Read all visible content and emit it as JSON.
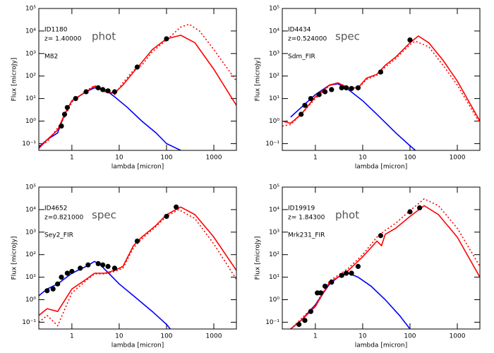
{
  "chart_data": [
    {
      "type": "line",
      "annotations": [
        "ID1180",
        "z= 1.40000",
        "phot",
        "M82"
      ],
      "xlabel": "lambda [micron]",
      "ylabel": "Flux [microJy]",
      "log_x": true,
      "log_y": true,
      "xlim": [
        0.2,
        3000
      ],
      "ylim": [
        0.05,
        100000
      ],
      "xticks": [
        1,
        10,
        100,
        1000
      ],
      "yticks": [
        {
          "value": 0.1,
          "label": "10⁻¹"
        },
        {
          "value": 1,
          "label": "10⁰"
        },
        {
          "value": 10,
          "label": "10¹"
        },
        {
          "value": 100,
          "label": "10²"
        },
        {
          "value": 1000,
          "label": "10³"
        },
        {
          "value": 10000,
          "label": "10⁴"
        },
        {
          "value": 100000,
          "label": "10⁵"
        }
      ],
      "series": [
        {
          "color": "#0000ff",
          "style": "solid",
          "x": [
            0.2,
            0.3,
            0.5,
            0.7,
            1,
            2,
            3,
            5,
            8,
            15,
            30,
            60,
            100,
            200
          ],
          "values": [
            0.07,
            0.15,
            0.3,
            2,
            8,
            20,
            30,
            25,
            12,
            4,
            1,
            0.3,
            0.1,
            0.05
          ]
        },
        {
          "color": "#ff0000",
          "style": "solid",
          "x": [
            0.2,
            0.3,
            0.5,
            0.7,
            1,
            2,
            3,
            5,
            8,
            12,
            20,
            30,
            50,
            100,
            200,
            400,
            1000,
            3000
          ],
          "values": [
            0.06,
            0.15,
            0.4,
            2,
            8,
            20,
            35,
            20,
            18,
            40,
            150,
            400,
            1500,
            4500,
            6500,
            3000,
            200,
            5
          ]
        },
        {
          "color": "#ff0000",
          "style": "dotted",
          "x": [
            0.2,
            0.3,
            0.5,
            0.7,
            1,
            2,
            3,
            5,
            8,
            12,
            20,
            30,
            50,
            100,
            200,
            300,
            500,
            1000,
            3000
          ],
          "values": [
            0.08,
            0.12,
            0.5,
            1.5,
            7,
            22,
            38,
            22,
            15,
            50,
            180,
            300,
            1200,
            4000,
            15000,
            20000,
            10000,
            1500,
            60
          ]
        }
      ],
      "points": {
        "color": "#000000",
        "x": [
          0.6,
          0.7,
          0.8,
          1.2,
          2,
          3.6,
          4.5,
          5.8,
          8,
          24,
          100
        ],
        "values": [
          0.6,
          2,
          4,
          10,
          20,
          30,
          25,
          22,
          20,
          250,
          4500
        ]
      }
    },
    {
      "type": "line",
      "annotations": [
        "ID4434",
        "z=0.524000",
        "spec",
        "Sdm_FIR"
      ],
      "xlabel": "lambda [micron]",
      "ylabel": "Flux [microJy]",
      "log_x": true,
      "log_y": true,
      "xlim": [
        0.2,
        3000
      ],
      "ylim": [
        0.05,
        100000
      ],
      "xticks": [
        1,
        10,
        100,
        1000
      ],
      "yticks": [
        {
          "value": 0.1,
          "label": "10⁻¹"
        },
        {
          "value": 1,
          "label": "10⁰"
        },
        {
          "value": 10,
          "label": "10¹"
        },
        {
          "value": 100,
          "label": "10²"
        },
        {
          "value": 1000,
          "label": "10³"
        },
        {
          "value": 10000,
          "label": "10⁴"
        },
        {
          "value": 100000,
          "label": "10⁵"
        }
      ],
      "series": [
        {
          "color": "#0000ff",
          "style": "solid",
          "x": [
            0.3,
            0.5,
            1,
            2,
            3,
            5,
            10,
            20,
            50,
            100,
            130
          ],
          "values": [
            1.5,
            4,
            15,
            40,
            45,
            25,
            8,
            2,
            0.3,
            0.08,
            0.05
          ]
        },
        {
          "color": "#ff0000",
          "style": "solid",
          "x": [
            0.2,
            0.3,
            0.5,
            1,
            2,
            3,
            5,
            8,
            12,
            20,
            30,
            50,
            100,
            150,
            250,
            500,
            1000,
            3000
          ],
          "values": [
            1,
            0.8,
            2,
            12,
            40,
            50,
            30,
            30,
            80,
            120,
            300,
            700,
            3000,
            6000,
            3000,
            500,
            60,
            1
          ]
        },
        {
          "color": "#ff0000",
          "style": "dotted",
          "x": [
            0.2,
            0.3,
            0.5,
            1,
            2,
            3,
            5,
            8,
            12,
            20,
            30,
            50,
            100,
            130,
            250,
            500,
            1000,
            3000
          ],
          "values": [
            0.6,
            0.7,
            2,
            10,
            38,
            48,
            30,
            28,
            70,
            110,
            250,
            600,
            2500,
            3500,
            2000,
            300,
            40,
            0.8
          ]
        }
      ],
      "points": {
        "color": "#000000",
        "x": [
          0.5,
          0.6,
          0.8,
          1.2,
          1.6,
          2.2,
          3.6,
          4.5,
          5.8,
          8,
          24,
          100
        ],
        "values": [
          2,
          5,
          10,
          15,
          20,
          25,
          30,
          30,
          28,
          30,
          150,
          4000
        ]
      }
    },
    {
      "type": "line",
      "annotations": [
        "ID4652",
        "z=0.821000",
        "spec",
        "Sey2_FIR"
      ],
      "xlabel": "lambda [micron]",
      "ylabel": "Flux [microJy]",
      "log_x": true,
      "log_y": true,
      "xlim": [
        0.2,
        3000
      ],
      "ylim": [
        0.05,
        100000
      ],
      "xticks": [
        1,
        10,
        100,
        1000
      ],
      "yticks": [
        {
          "value": 0.1,
          "label": "10⁻¹"
        },
        {
          "value": 1,
          "label": "10⁰"
        },
        {
          "value": 10,
          "label": "10¹"
        },
        {
          "value": 100,
          "label": "10²"
        },
        {
          "value": 1000,
          "label": "10³"
        },
        {
          "value": 10000,
          "label": "10⁴"
        },
        {
          "value": 100000,
          "label": "10⁵"
        }
      ],
      "series": [
        {
          "color": "#0000ff",
          "style": "solid",
          "x": [
            0.2,
            0.3,
            0.5,
            1,
            2,
            3,
            4,
            6,
            10,
            20,
            50,
            100,
            120
          ],
          "values": [
            1.5,
            3,
            5,
            15,
            30,
            50,
            35,
            15,
            5,
            1.5,
            0.3,
            0.08,
            0.05
          ]
        },
        {
          "color": "#ff0000",
          "style": "solid",
          "x": [
            0.2,
            0.3,
            0.5,
            1,
            2,
            3,
            5,
            8,
            12,
            20,
            30,
            60,
            100,
            200,
            400,
            1000,
            3000
          ],
          "values": [
            0.2,
            0.4,
            0.3,
            3,
            8,
            15,
            15,
            20,
            30,
            250,
            600,
            2000,
            6000,
            13000,
            6000,
            600,
            20
          ]
        },
        {
          "color": "#ff0000",
          "style": "dotted",
          "x": [
            0.2,
            0.3,
            0.5,
            1,
            2,
            3,
            5,
            8,
            12,
            20,
            30,
            60,
            100,
            180,
            400,
            1000,
            3000
          ],
          "values": [
            0.1,
            0.2,
            0.07,
            2,
            7,
            14,
            14,
            18,
            25,
            200,
            500,
            1800,
            5000,
            10000,
            4000,
            300,
            8
          ]
        }
      ],
      "points": {
        "color": "#000000",
        "x": [
          0.3,
          0.4,
          0.5,
          0.6,
          0.8,
          1,
          1.5,
          2.2,
          3.6,
          4.5,
          5.8,
          8,
          24,
          100,
          160
        ],
        "values": [
          2.5,
          3,
          5,
          10,
          15,
          18,
          25,
          35,
          40,
          35,
          30,
          25,
          400,
          5000,
          13000
        ]
      }
    },
    {
      "type": "line",
      "annotations": [
        "ID19919",
        "z= 1.84300",
        "phot",
        "Mrk231_FIR"
      ],
      "xlabel": "lambda [micron]",
      "ylabel": "Flux [microJy]",
      "log_x": true,
      "log_y": true,
      "xlim": [
        0.2,
        3000
      ],
      "ylim": [
        0.05,
        100000
      ],
      "xticks": [
        1,
        10,
        100,
        1000
      ],
      "yticks": [
        {
          "value": 0.1,
          "label": "10⁻¹"
        },
        {
          "value": 1,
          "label": "10⁰"
        },
        {
          "value": 10,
          "label": "10¹"
        },
        {
          "value": 100,
          "label": "10²"
        },
        {
          "value": 1000,
          "label": "10³"
        },
        {
          "value": 10000,
          "label": "10⁴"
        },
        {
          "value": 100000,
          "label": "10⁵"
        }
      ],
      "series": [
        {
          "color": "#0000ff",
          "style": "solid",
          "x": [
            0.3,
            0.5,
            1,
            2,
            3,
            5,
            8,
            15,
            30,
            60,
            100
          ],
          "values": [
            0.05,
            0.12,
            0.6,
            5,
            10,
            15,
            10,
            4,
            1,
            0.2,
            0.05
          ]
        },
        {
          "color": "#ff0000",
          "style": "solid",
          "x": [
            0.3,
            0.5,
            1,
            2,
            3,
            5,
            10,
            20,
            25,
            30,
            50,
            100,
            200,
            400,
            1000,
            3000
          ],
          "values": [
            0.05,
            0.12,
            0.5,
            6,
            10,
            20,
            80,
            400,
            250,
            800,
            1500,
            5000,
            15000,
            6000,
            600,
            10
          ]
        },
        {
          "color": "#ff0000",
          "style": "dotted",
          "x": [
            0.3,
            0.5,
            1,
            2,
            3,
            5,
            10,
            20,
            25,
            30,
            50,
            100,
            200,
            400,
            1000,
            3000
          ],
          "values": [
            0.05,
            0.14,
            0.6,
            7,
            12,
            25,
            100,
            600,
            900,
            1200,
            2500,
            9000,
            30000,
            15000,
            1500,
            30
          ]
        }
      ],
      "points": {
        "color": "#000000",
        "x": [
          0.45,
          0.6,
          0.8,
          1.1,
          1.3,
          1.6,
          2.2,
          3.6,
          4.5,
          5.8,
          8,
          24,
          100,
          160
        ],
        "values": [
          0.08,
          0.12,
          0.3,
          2,
          2,
          4,
          6,
          12,
          15,
          15,
          30,
          700,
          8000,
          12000
        ]
      }
    }
  ]
}
